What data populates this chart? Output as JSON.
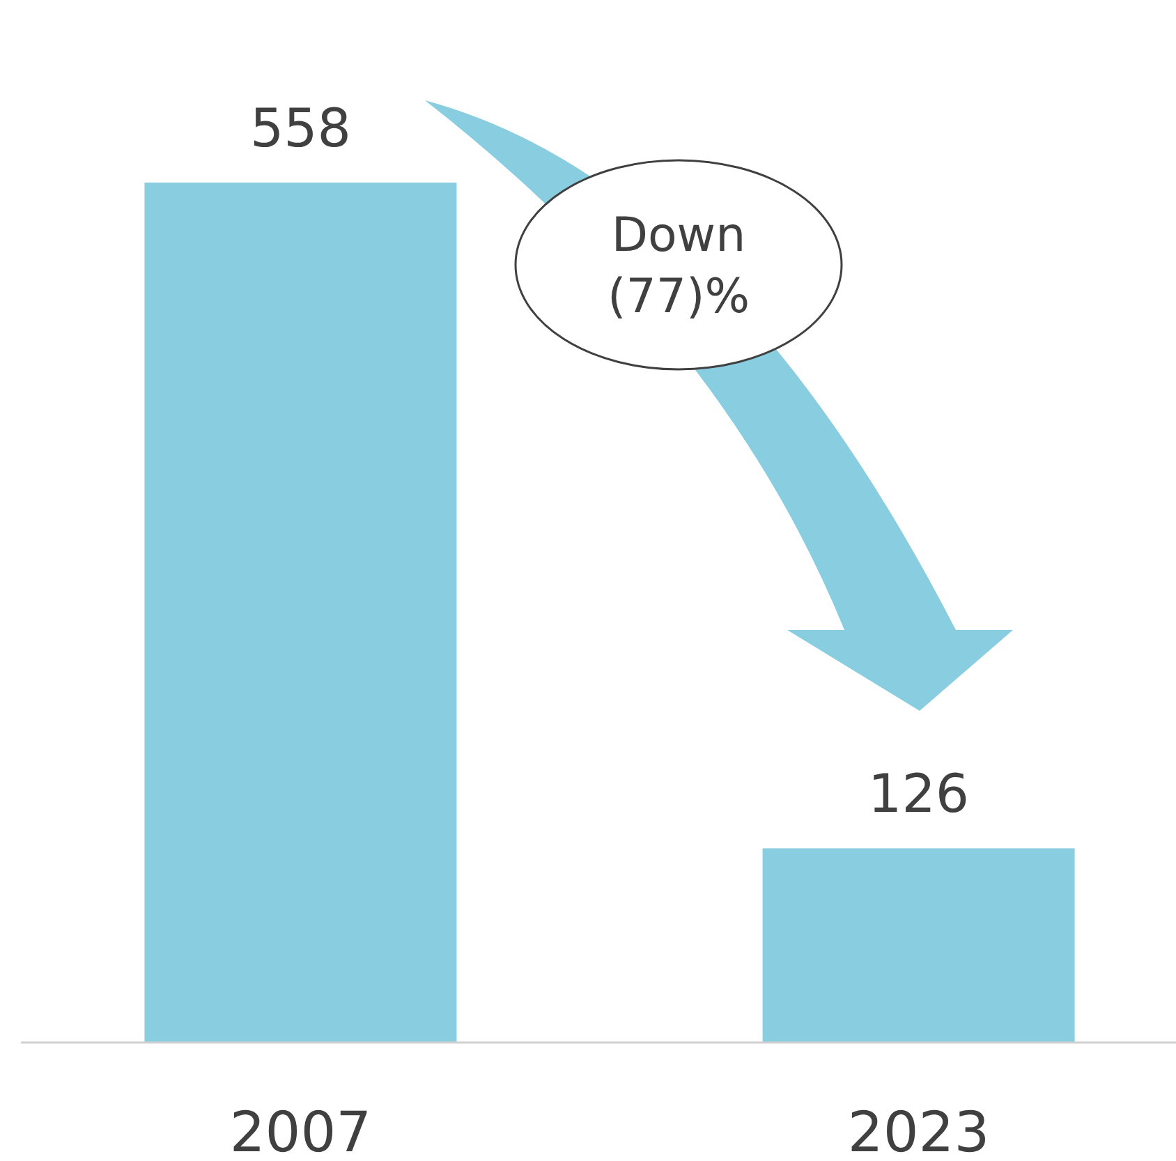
{
  "chart_data": {
    "type": "bar",
    "categories": [
      "2007",
      "2023"
    ],
    "values": [
      558,
      126
    ],
    "color": "#89cde0",
    "data_labels": true,
    "annotations": [
      "Down (77)%"
    ]
  }
}
